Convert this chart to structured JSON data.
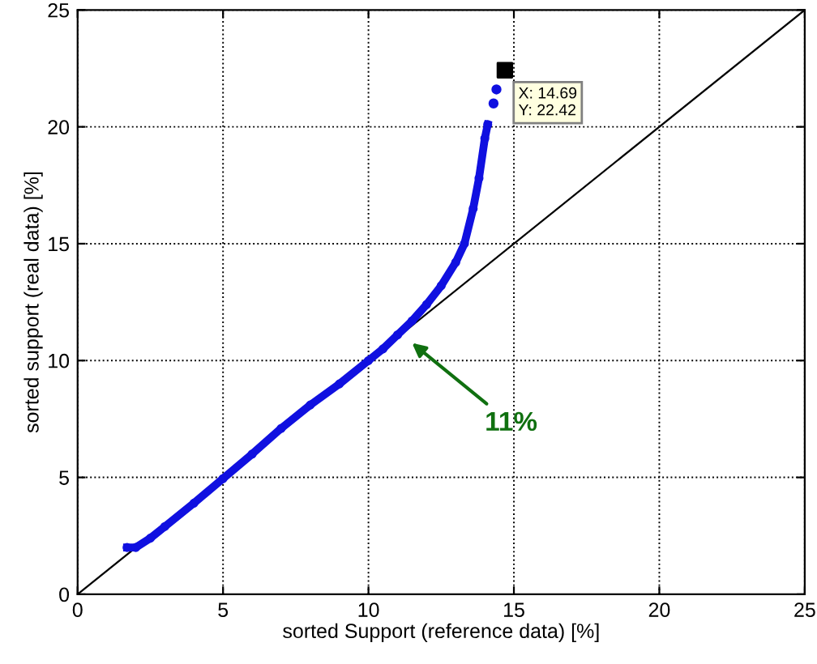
{
  "chart_data": {
    "type": "line",
    "xlabel": "sorted Support (reference data) [%]",
    "ylabel": "sorted support (real data) [%]",
    "xlim": [
      0,
      25
    ],
    "ylim": [
      0,
      25
    ],
    "xticks": [
      0,
      5,
      10,
      15,
      20,
      25
    ],
    "yticks": [
      0,
      5,
      10,
      15,
      20,
      25
    ],
    "grid": true,
    "series": [
      {
        "color": "#000000",
        "x": [
          0,
          25
        ],
        "values": [
          0,
          25
        ],
        "marker": "none"
      },
      {
        "color": "#1010e0",
        "marker": "circle",
        "x": [
          1.7,
          2.0,
          2.5,
          3,
          4,
          5,
          6,
          7,
          8,
          9,
          10,
          10.5,
          11,
          11.5,
          12,
          12.5,
          13,
          13.3,
          13.6,
          13.8,
          14.0,
          14.1
        ],
        "values": [
          2.0,
          2.0,
          2.4,
          2.9,
          3.9,
          4.95,
          6.0,
          7.1,
          8.1,
          9.0,
          10.0,
          10.5,
          11.1,
          11.7,
          12.4,
          13.2,
          14.2,
          15.0,
          16.5,
          17.8,
          19.5,
          20.1
        ]
      },
      {
        "type": "scatter",
        "color": "#1010e0",
        "marker": "circle",
        "x": [
          14.3,
          14.4
        ],
        "values": [
          21.0,
          21.6
        ]
      },
      {
        "type": "scatter",
        "color": "#000000",
        "marker": "square",
        "x": [
          14.69
        ],
        "values": [
          22.42
        ]
      }
    ],
    "annotations": [
      {
        "text": "X: 14.69\nY: 22.42",
        "x": 14.69,
        "y": 22.42
      },
      "11%"
    ]
  }
}
